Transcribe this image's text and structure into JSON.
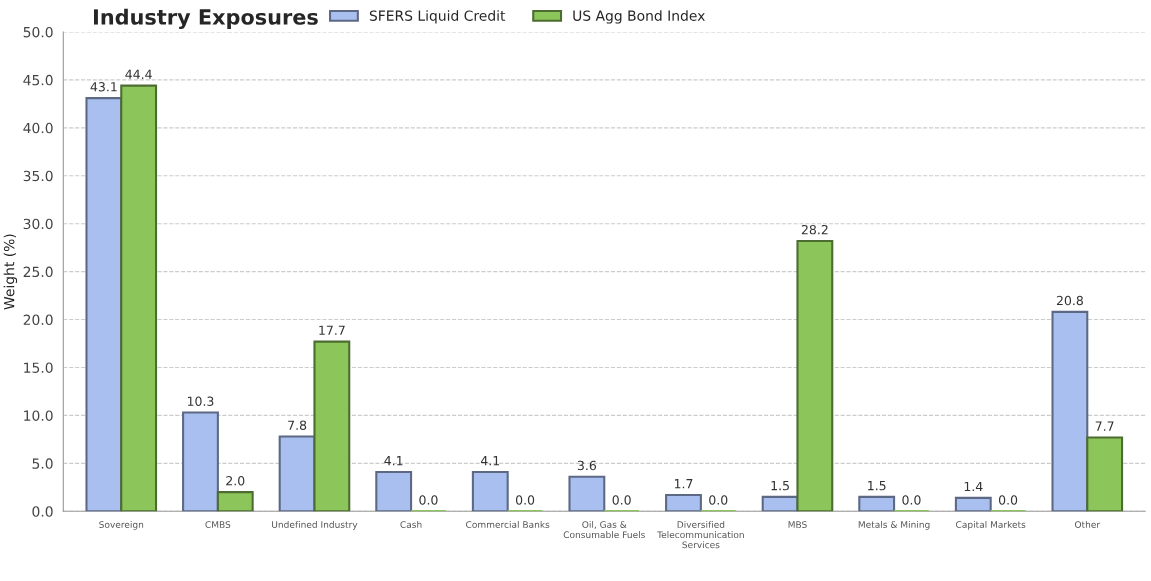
{
  "chart_data": {
    "type": "bar",
    "title": "Industry Exposures",
    "ylabel": "Weight (%)",
    "categories": [
      "Sovereign",
      "CMBS",
      "Undefined Industry",
      "Cash",
      "Commercial Banks",
      "Oil, Gas &\nConsumable Fuels",
      "Diversified\nTelecommunication\nServices",
      "MBS",
      "Metals & Mining",
      "Capital Markets",
      "Other"
    ],
    "series": [
      {
        "name": "SFERS Liquid Credit",
        "color": "#a9bff0",
        "values": [
          43.1,
          10.3,
          7.8,
          4.1,
          4.1,
          3.6,
          1.7,
          1.5,
          1.5,
          1.4,
          20.8
        ],
        "value_labels": [
          "43.1",
          "10.3",
          "7.8",
          "4.1",
          "4.1",
          "3.6",
          "1.7",
          "1.5",
          "1.5",
          "1.4",
          "20.8"
        ]
      },
      {
        "name": "US Agg Bond Index",
        "color": "#8cc55a",
        "values": [
          44.4,
          2,
          17.7,
          0,
          0,
          0,
          0,
          28.2,
          0,
          0,
          7.7
        ],
        "value_labels": [
          "44.4",
          "2.0",
          "17.7",
          "0.0",
          "0.0",
          "0.0",
          "0.0",
          "28.2",
          "0.0",
          "0.0",
          "7.7"
        ]
      }
    ],
    "ylim": [
      0,
      50
    ],
    "yticks": [
      {
        "value": 0,
        "label": "0.0"
      },
      {
        "value": 5,
        "label": "5.0"
      },
      {
        "value": 10,
        "label": "10.0"
      },
      {
        "value": 15,
        "label": "15.0"
      },
      {
        "value": 20,
        "label": "20.0"
      },
      {
        "value": 25,
        "label": "25.0"
      },
      {
        "value": 30,
        "label": "30.0"
      },
      {
        "value": 35,
        "label": "35.0"
      },
      {
        "value": 40,
        "label": "40.0"
      },
      {
        "value": 45,
        "label": "45.0"
      },
      {
        "value": 50,
        "label": "50.0"
      }
    ],
    "grid": "y",
    "legend": "top"
  }
}
